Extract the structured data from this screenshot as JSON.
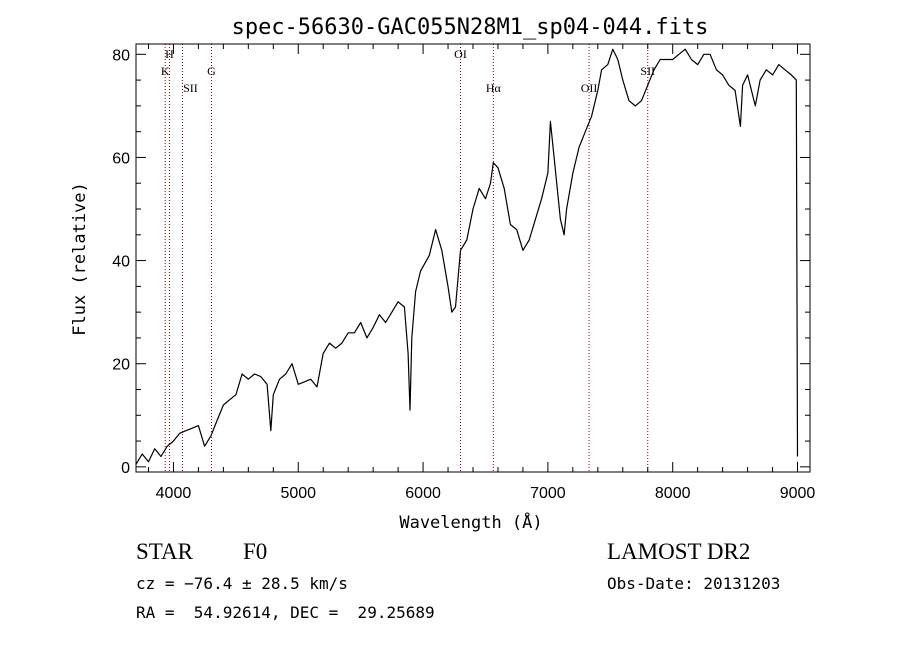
{
  "chart_data": {
    "type": "line",
    "title": "spec-56630-GAC055N28M1_sp04-044.fits",
    "xlabel": "Wavelength (Å)",
    "ylabel": "Flux (relative)",
    "xlim": [
      3700,
      9100
    ],
    "ylim": [
      -1,
      82
    ],
    "xticks": [
      4000,
      5000,
      6000,
      7000,
      8000,
      9000
    ],
    "yticks": [
      0,
      20,
      40,
      60,
      80
    ],
    "grid": false,
    "line_color": "#000000",
    "marker_line_color": "#8b0000",
    "lines": [
      {
        "label": "H",
        "x": 3968
      },
      {
        "label": "K",
        "x": 3934
      },
      {
        "label": "SII",
        "x": 4072
      },
      {
        "label": "G",
        "x": 4305
      },
      {
        "label": "OI",
        "x": 6300
      },
      {
        "label": "Hα",
        "x": 6563
      },
      {
        "label": "OII",
        "x": 7330
      },
      {
        "label": "SII",
        "x": 7800
      }
    ],
    "series": [
      {
        "x": [
          3700,
          3750,
          3800,
          3850,
          3900,
          3950,
          4000,
          4050,
          4100,
          4150,
          4200,
          4250,
          4300,
          4350,
          4400,
          4450,
          4500,
          4550,
          4600,
          4650,
          4700,
          4750,
          4780,
          4800,
          4850,
          4900,
          4950,
          5000,
          5050,
          5100,
          5150,
          5200,
          5250,
          5300,
          5350,
          5400,
          5450,
          5500,
          5550,
          5600,
          5650,
          5700,
          5750,
          5800,
          5850,
          5880,
          5895,
          5910,
          5940,
          5980,
          6050,
          6100,
          6150,
          6200,
          6230,
          6260,
          6300,
          6350,
          6400,
          6450,
          6500,
          6540,
          6563,
          6600,
          6650,
          6700,
          6750,
          6800,
          6850,
          6900,
          6950,
          7000,
          7020,
          7050,
          7100,
          7130,
          7150,
          7200,
          7250,
          7300,
          7350,
          7400,
          7430,
          7480,
          7520,
          7560,
          7600,
          7650,
          7700,
          7750,
          7800,
          7850,
          7900,
          7950,
          8000,
          8050,
          8100,
          8150,
          8200,
          8250,
          8300,
          8350,
          8400,
          8450,
          8500,
          8542,
          8560,
          8600,
          8662,
          8700,
          8750,
          8800,
          8850,
          8900,
          8950,
          8990,
          9000
        ],
        "y": [
          0.5,
          2.5,
          1.0,
          3.5,
          2.0,
          4.0,
          5.0,
          6.5,
          7.0,
          7.5,
          8.0,
          4.0,
          6.0,
          9.0,
          12.0,
          13.0,
          14.0,
          18.0,
          17.0,
          18.0,
          17.5,
          16.0,
          7.0,
          14.0,
          17.0,
          18.0,
          20.0,
          16.0,
          16.5,
          17.0,
          15.5,
          22.0,
          24.0,
          23.0,
          24.0,
          26.0,
          26.0,
          28.0,
          25.0,
          27.0,
          29.5,
          28.0,
          30.0,
          32.0,
          31.0,
          22.0,
          11.0,
          25.0,
          34.0,
          38.0,
          41.0,
          46.0,
          42.0,
          35.0,
          30.0,
          31.0,
          42.0,
          44.0,
          50.0,
          54.0,
          52.0,
          55.0,
          59.0,
          58.0,
          54.0,
          47.0,
          46.0,
          42.0,
          44.0,
          48.0,
          52.0,
          57.0,
          67.0,
          60.0,
          48.0,
          45.0,
          50.0,
          57.0,
          62.0,
          65.0,
          68.0,
          73.0,
          77.0,
          78.0,
          81.0,
          79.0,
          75.0,
          71.0,
          70.0,
          71.0,
          74.0,
          77.0,
          79.0,
          79.0,
          79.0,
          80.0,
          81.0,
          79.0,
          78.0,
          80.0,
          80.0,
          77.0,
          76.0,
          74.0,
          73.0,
          66.0,
          74.0,
          76.0,
          70.0,
          75.0,
          77.0,
          76.0,
          78.0,
          77.0,
          76.0,
          75.0,
          2.0
        ]
      }
    ]
  },
  "info": {
    "object_class": "STAR",
    "subclass": "F0",
    "survey": "LAMOST DR2",
    "cz": "cz = −76.4 ± 28.5 km/s",
    "obs_date": "Obs-Date: 20131203",
    "radec": "RA =  54.92614, DEC =  29.25689"
  }
}
